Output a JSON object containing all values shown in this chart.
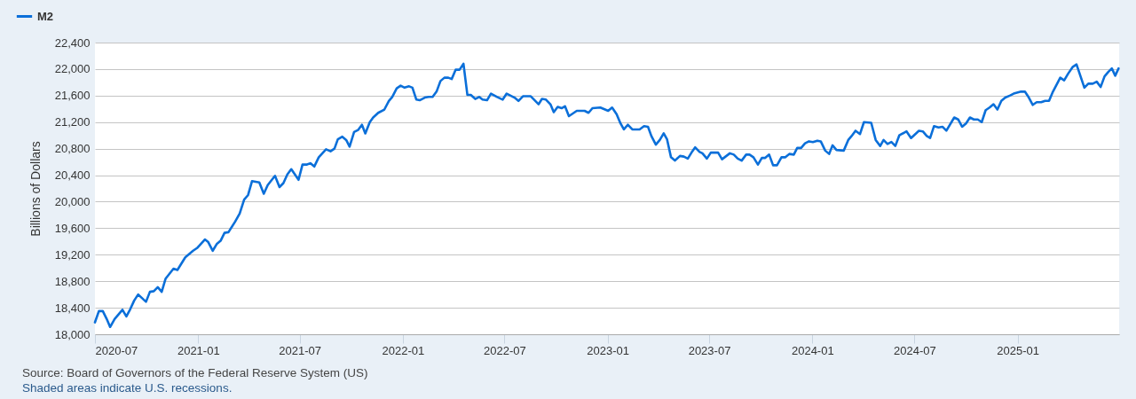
{
  "chart_data": {
    "type": "line",
    "ylabel": "Billions of Dollars",
    "annotations": [
      "Source: Board of Governors of the Federal Reserve System (US)",
      "Shaded areas indicate U.S. recessions."
    ],
    "xlim": [
      "2020-07-01",
      "2025-07-01"
    ],
    "xticks": [
      "2020-07",
      "2021-01",
      "2021-07",
      "2022-01",
      "2022-07",
      "2023-01",
      "2023-07",
      "2024-01",
      "2024-07",
      "2025-01"
    ],
    "ylim": [
      18000,
      22400
    ],
    "yticks": [
      {
        "value": 18000,
        "label": "18,000"
      },
      {
        "value": 18400,
        "label": "18,400"
      },
      {
        "value": 18800,
        "label": "18,800"
      },
      {
        "value": 19200,
        "label": "19,200"
      },
      {
        "value": 19600,
        "label": "19,600"
      },
      {
        "value": 20000,
        "label": "20,000"
      },
      {
        "value": 20400,
        "label": "20,400"
      },
      {
        "value": 20800,
        "label": "20,800"
      },
      {
        "value": 21200,
        "label": "21,200"
      },
      {
        "value": 21600,
        "label": "21,600"
      },
      {
        "value": 22000,
        "label": "22,000"
      },
      {
        "value": 22400,
        "label": "22,400"
      }
    ],
    "grid": "y",
    "legend": "top left",
    "line_style": "solid",
    "x": [
      "2020-07-01",
      "2020-07-08",
      "2020-07-15",
      "2020-07-22",
      "2020-07-28",
      "2020-08-05",
      "2020-08-19",
      "2020-08-26",
      "2020-09-02",
      "2020-09-09",
      "2020-09-16",
      "2020-09-30",
      "2020-10-07",
      "2020-10-14",
      "2020-10-21",
      "2020-10-28",
      "2020-11-04",
      "2020-11-18",
      "2020-11-25",
      "2020-12-09",
      "2020-12-23",
      "2020-12-30",
      "2021-01-13",
      "2021-01-19",
      "2021-01-27",
      "2021-02-03",
      "2021-02-10",
      "2021-02-17",
      "2021-02-24",
      "2021-03-08",
      "2021-03-16",
      "2021-03-24",
      "2021-03-31",
      "2021-04-07",
      "2021-04-20",
      "2021-04-28",
      "2021-05-05",
      "2021-05-18",
      "2021-05-26",
      "2021-06-02",
      "2021-06-09",
      "2021-06-16",
      "2021-06-29",
      "2021-07-06",
      "2021-07-14",
      "2021-07-20",
      "2021-07-27",
      "2021-08-04",
      "2021-08-17",
      "2021-08-25",
      "2021-09-01",
      "2021-09-07",
      "2021-09-15",
      "2021-09-22",
      "2021-09-28",
      "2021-10-06",
      "2021-10-13",
      "2021-10-20",
      "2021-10-26",
      "2021-11-03",
      "2021-11-09",
      "2021-11-18",
      "2021-11-29",
      "2021-12-07",
      "2021-12-13",
      "2021-12-21",
      "2021-12-28",
      "2022-01-04",
      "2022-01-12",
      "2022-01-18",
      "2022-01-25",
      "2022-01-31",
      "2022-02-09",
      "2022-02-16",
      "2022-02-23",
      "2022-03-02",
      "2022-03-09",
      "2022-03-16",
      "2022-03-23",
      "2022-03-29",
      "2022-04-05",
      "2022-04-12",
      "2022-04-19",
      "2022-04-26",
      "2022-05-02",
      "2022-05-10",
      "2022-05-17",
      "2022-05-23",
      "2022-05-31",
      "2022-06-07",
      "2022-06-18",
      "2022-06-28",
      "2022-07-05",
      "2022-07-19",
      "2022-07-26",
      "2022-08-03",
      "2022-08-17",
      "2022-08-31",
      "2022-09-06",
      "2022-09-13",
      "2022-09-21",
      "2022-09-27",
      "2022-10-04",
      "2022-10-11",
      "2022-10-17",
      "2022-10-24",
      "2022-11-07",
      "2022-11-21",
      "2022-11-28",
      "2022-12-05",
      "2022-12-19",
      "2023-01-02",
      "2023-01-09",
      "2023-01-17",
      "2023-01-24",
      "2023-01-30",
      "2023-02-06",
      "2023-02-14",
      "2023-02-27",
      "2023-03-07",
      "2023-03-14",
      "2023-03-20",
      "2023-03-28",
      "2023-04-04",
      "2023-04-11",
      "2023-04-17",
      "2023-04-24",
      "2023-05-01",
      "2023-05-10",
      "2023-05-17",
      "2023-05-24",
      "2023-06-01",
      "2023-06-06",
      "2023-06-14",
      "2023-06-19",
      "2023-06-27",
      "2023-07-04",
      "2023-07-17",
      "2023-07-24",
      "2023-08-07",
      "2023-08-14",
      "2023-08-21",
      "2023-08-28",
      "2023-09-05",
      "2023-09-11",
      "2023-09-18",
      "2023-09-26",
      "2023-10-03",
      "2023-10-09",
      "2023-10-16",
      "2023-10-23",
      "2023-10-30",
      "2023-11-07",
      "2023-11-14",
      "2023-11-21",
      "2023-11-29",
      "2023-12-05",
      "2023-12-12",
      "2023-12-19",
      "2023-12-26",
      "2024-01-02",
      "2024-01-10",
      "2024-01-16",
      "2024-01-24",
      "2024-01-31",
      "2024-02-06",
      "2024-02-13",
      "2024-02-26",
      "2024-03-05",
      "2024-03-11",
      "2024-03-18",
      "2024-03-26",
      "2024-04-02",
      "2024-04-15",
      "2024-04-23",
      "2024-05-01",
      "2024-05-07",
      "2024-05-14",
      "2024-05-21",
      "2024-05-28",
      "2024-06-04",
      "2024-06-17",
      "2024-06-25",
      "2024-07-09",
      "2024-07-16",
      "2024-07-23",
      "2024-07-29",
      "2024-08-05",
      "2024-08-13",
      "2024-08-20",
      "2024-08-27",
      "2024-09-10",
      "2024-09-17",
      "2024-09-24",
      "2024-10-01",
      "2024-10-08",
      "2024-10-15",
      "2024-10-22",
      "2024-10-29",
      "2024-11-05",
      "2024-11-12",
      "2024-11-19",
      "2024-11-26",
      "2024-12-03",
      "2024-12-10",
      "2024-12-18",
      "2024-12-25",
      "2025-01-07",
      "2025-01-14",
      "2025-01-21",
      "2025-01-28",
      "2025-02-04",
      "2025-02-12",
      "2025-02-19",
      "2025-02-26",
      "2025-03-05",
      "2025-03-18",
      "2025-03-25",
      "2025-04-01",
      "2025-04-09",
      "2025-04-16",
      "2025-04-30",
      "2025-05-07",
      "2025-05-15",
      "2025-05-22",
      "2025-05-29",
      "2025-06-05",
      "2025-06-12",
      "2025-06-18",
      "2025-06-24",
      "2025-06-30"
    ],
    "series": [
      {
        "name": "M2",
        "color": "#0b6fd9",
        "values": [
          18180,
          18350,
          18350,
          18230,
          18110,
          18230,
          18370,
          18270,
          18380,
          18510,
          18600,
          18490,
          18640,
          18650,
          18710,
          18640,
          18840,
          18990,
          18970,
          19160,
          19260,
          19300,
          19430,
          19390,
          19260,
          19360,
          19410,
          19530,
          19540,
          19700,
          19820,
          20030,
          20100,
          20310,
          20290,
          20120,
          20250,
          20390,
          20220,
          20280,
          20410,
          20490,
          20330,
          20560,
          20560,
          20580,
          20530,
          20670,
          20790,
          20760,
          20800,
          20940,
          20980,
          20930,
          20830,
          21050,
          21080,
          21160,
          21030,
          21200,
          21270,
          21340,
          21390,
          21520,
          21580,
          21710,
          21750,
          21720,
          21740,
          21720,
          21540,
          21530,
          21570,
          21580,
          21580,
          21660,
          21820,
          21870,
          21870,
          21850,
          21990,
          21990,
          22080,
          21610,
          21610,
          21550,
          21580,
          21540,
          21530,
          21630,
          21580,
          21540,
          21630,
          21570,
          21520,
          21590,
          21590,
          21470,
          21550,
          21540,
          21470,
          21350,
          21430,
          21410,
          21440,
          21290,
          21370,
          21370,
          21340,
          21410,
          21420,
          21370,
          21420,
          21320,
          21180,
          21090,
          21160,
          21090,
          21090,
          21140,
          21130,
          20990,
          20860,
          20930,
          21030,
          20940,
          20670,
          20620,
          20690,
          20680,
          20650,
          20760,
          20820,
          20750,
          20730,
          20650,
          20740,
          20740,
          20640,
          20730,
          20710,
          20650,
          20620,
          20710,
          20710,
          20670,
          20560,
          20660,
          20660,
          20710,
          20550,
          20550,
          20670,
          20670,
          20720,
          20710,
          20810,
          20810,
          20880,
          20910,
          20900,
          20920,
          20910,
          20770,
          20720,
          20850,
          20780,
          20770,
          20930,
          20990,
          21070,
          21020,
          21200,
          21190,
          20930,
          20840,
          20930,
          20870,
          20900,
          20840,
          21000,
          21060,
          20960,
          21070,
          21060,
          20990,
          20960,
          21140,
          21120,
          21130,
          21070,
          21270,
          21240,
          21130,
          21180,
          21270,
          21240,
          21240,
          21200,
          21380,
          21420,
          21470,
          21390,
          21520,
          21570,
          21600,
          21630,
          21660,
          21660,
          21570,
          21460,
          21500,
          21500,
          21520,
          21520,
          21660,
          21870,
          21830,
          21930,
          22030,
          22070,
          21720,
          21780,
          21780,
          21810,
          21730,
          21890,
          21960,
          22010,
          21900,
          22010
        ]
      }
    ]
  }
}
